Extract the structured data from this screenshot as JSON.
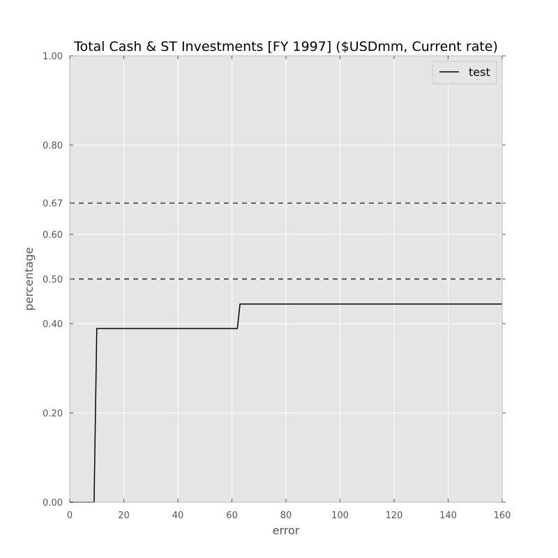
{
  "chart_data": {
    "type": "line",
    "title": "Total Cash & ST Investments [FY 1997] ($USDmm, Current rate)",
    "xlabel": "error",
    "ylabel": "percentage",
    "xlim": [
      0,
      160
    ],
    "ylim": [
      0,
      1
    ],
    "x_ticks": [
      0,
      20,
      40,
      60,
      80,
      100,
      120,
      140,
      160
    ],
    "x_tick_labels": [
      "0",
      "20",
      "40",
      "60",
      "80",
      "100",
      "120",
      "140",
      "160"
    ],
    "y_ticks": [
      0,
      0.2,
      0.4,
      0.5,
      0.6,
      0.67,
      0.8,
      1.0
    ],
    "y_tick_labels": [
      "0.00",
      "0.20",
      "0.40",
      "0.50",
      "0.60",
      "0.67",
      "0.80",
      "1.00"
    ],
    "grid": true,
    "background": "#e5e5e5",
    "legend_position": "top-right",
    "series": [
      {
        "name": "test",
        "color": "#000000",
        "x": [
          0,
          9,
          10,
          62,
          63,
          160
        ],
        "y": [
          0,
          0,
          0.389,
          0.389,
          0.444,
          0.444
        ]
      }
    ],
    "reference_lines": [
      {
        "y": 0.67,
        "style": "dashed",
        "color": "#000000"
      },
      {
        "y": 0.5,
        "style": "dashed",
        "color": "#000000"
      }
    ]
  }
}
